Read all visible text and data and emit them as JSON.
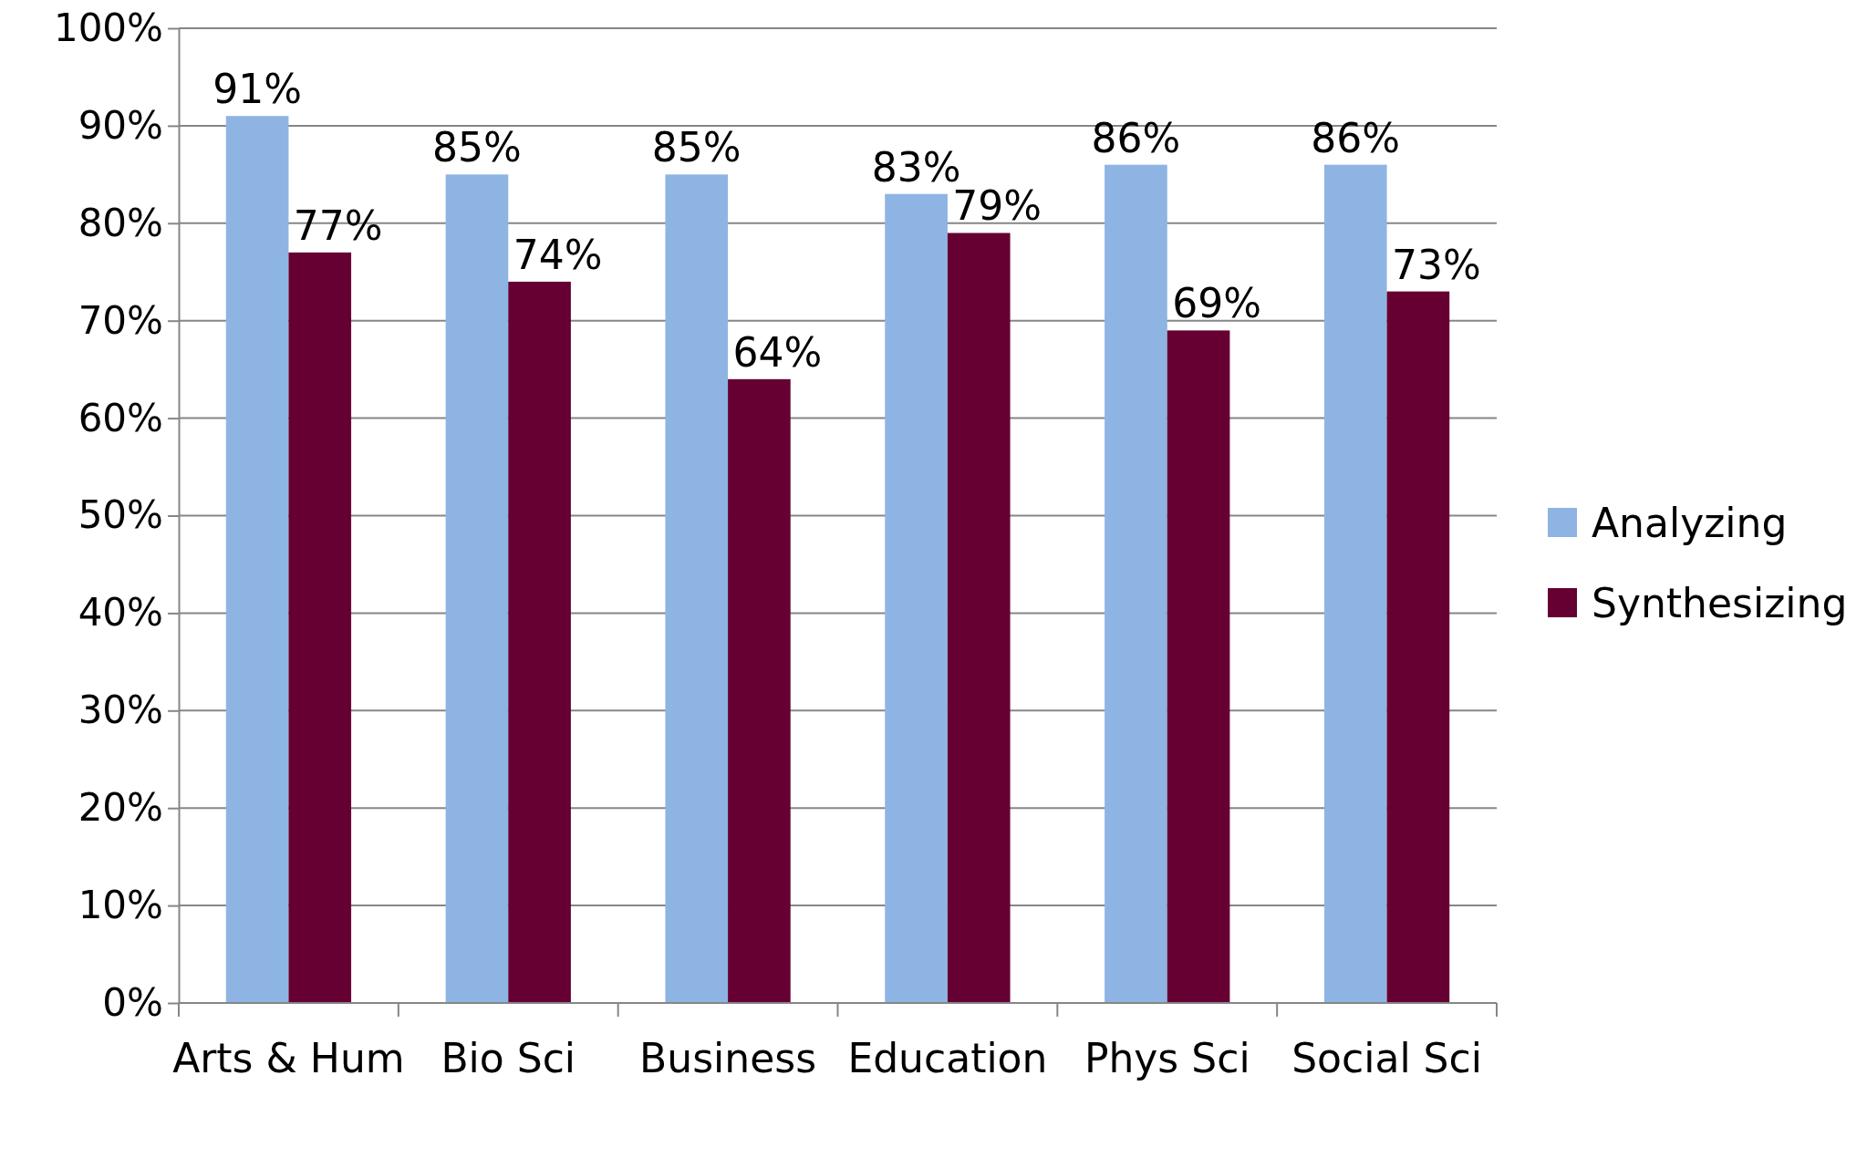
{
  "chart_data": {
    "type": "bar",
    "categories": [
      "Arts & Hum",
      "Bio Sci",
      "Business",
      "Education",
      "Phys Sci",
      "Social Sci"
    ],
    "series": [
      {
        "name": "Analyzing",
        "color": "#8eb4e3",
        "values": [
          91,
          85,
          85,
          83,
          86,
          86
        ],
        "value_labels": [
          "91%",
          "85%",
          "85%",
          "83%",
          "86%",
          "86%"
        ]
      },
      {
        "name": "Synthesizing",
        "color": "#660033",
        "values": [
          77,
          74,
          64,
          79,
          69,
          73
        ],
        "value_labels": [
          "77%",
          "74%",
          "64%",
          "79%",
          "69%",
          "73%"
        ]
      }
    ],
    "ylim": [
      0,
      100
    ],
    "yticks": [
      {
        "value": 0,
        "label": "0%"
      },
      {
        "value": 10,
        "label": "10%"
      },
      {
        "value": 20,
        "label": "20%"
      },
      {
        "value": 30,
        "label": "30%"
      },
      {
        "value": 40,
        "label": "40%"
      },
      {
        "value": 50,
        "label": "50%"
      },
      {
        "value": 60,
        "label": "60%"
      },
      {
        "value": 70,
        "label": "70%"
      },
      {
        "value": 80,
        "label": "80%"
      },
      {
        "value": 90,
        "label": "90%"
      },
      {
        "value": 100,
        "label": "100%"
      }
    ],
    "grid": "y",
    "legend": "right"
  }
}
